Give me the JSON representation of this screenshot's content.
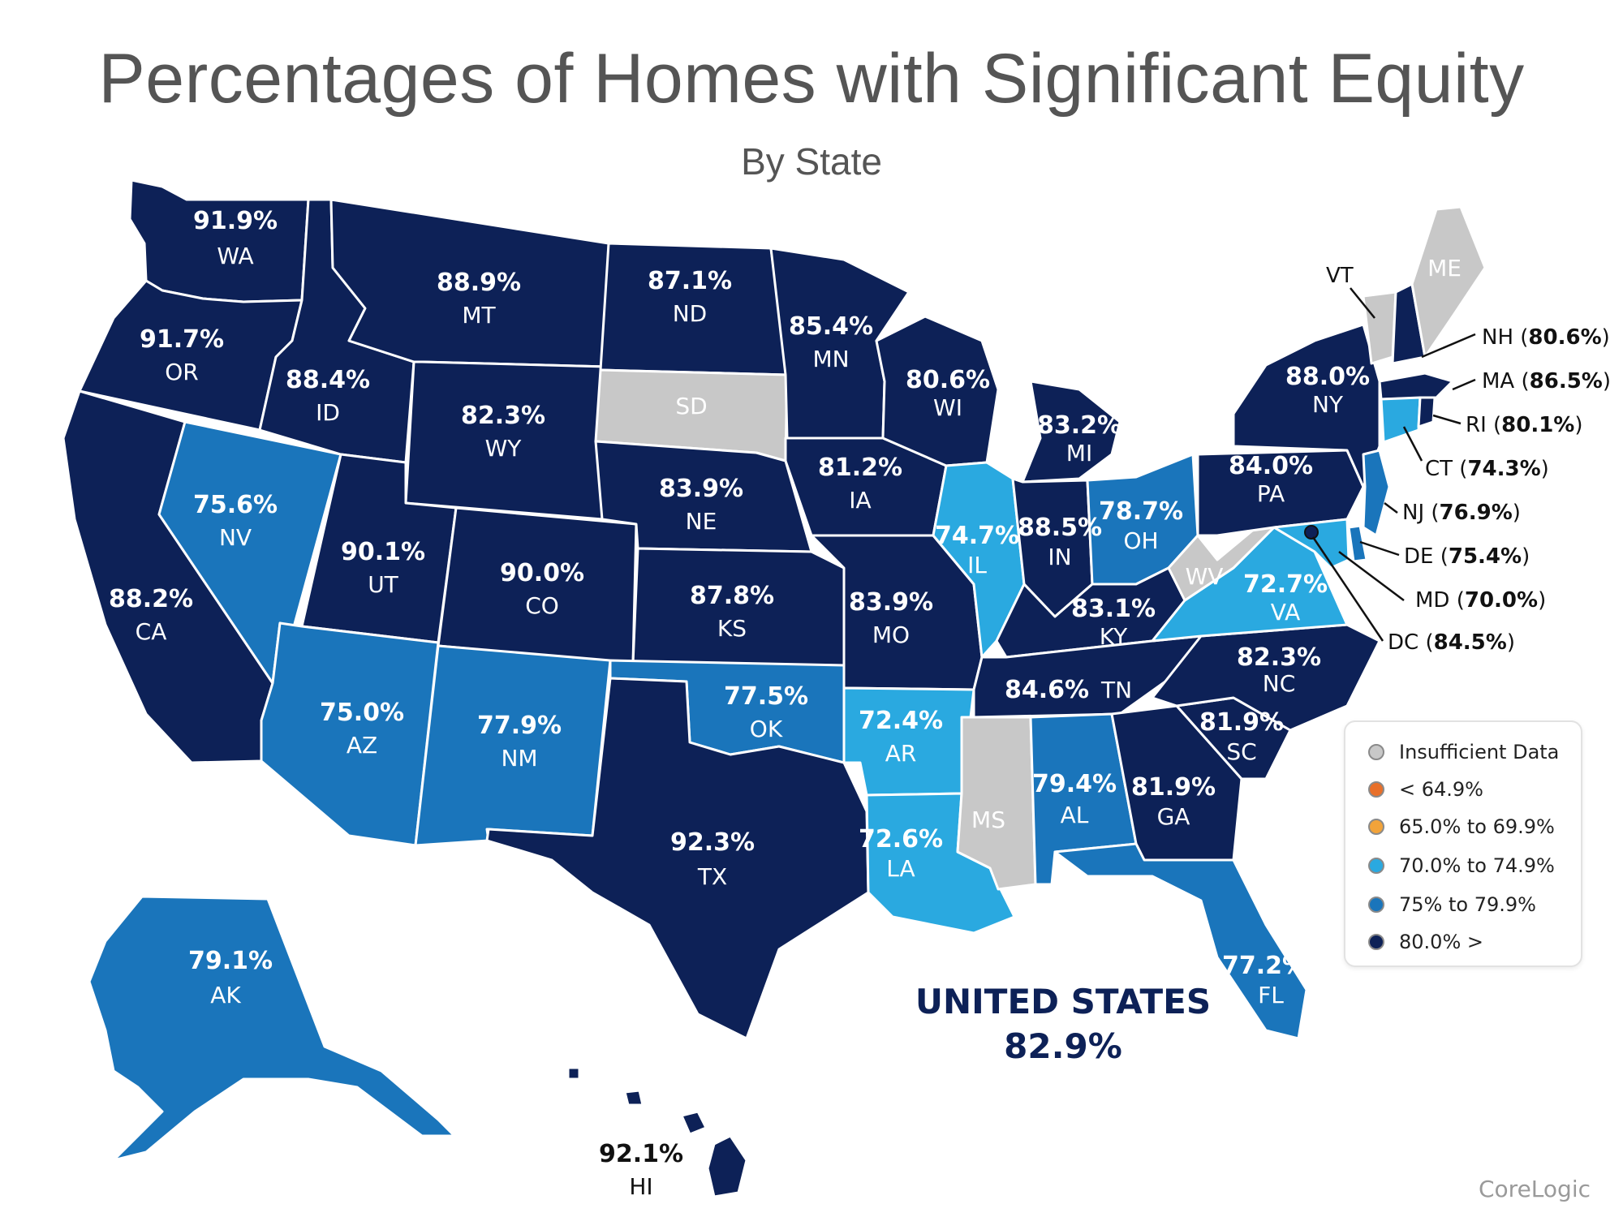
{
  "title": "Percentages of Homes with Significant Equity",
  "subtitle": "By State",
  "source": "CoreLogic",
  "national": {
    "name": "UNITED STATES",
    "value": "82.9%"
  },
  "colors": {
    "insufficient": "#c8c8c8",
    "lt65": "#e8702a",
    "65to70": "#f2a33a",
    "70to75": "#2aa9e0",
    "75to80": "#1a75bb",
    "gt80": "#0d2157"
  },
  "legend": [
    {
      "label": "Insufficient Data",
      "color": "#c8c8c8"
    },
    {
      "label": "< 64.9%",
      "color": "#e8702a"
    },
    {
      "label": "65.0% to 69.9%",
      "color": "#f2a33a"
    },
    {
      "label": "70.0% to 74.9%",
      "color": "#2aa9e0"
    },
    {
      "label": "75% to 79.9%",
      "color": "#1a75bb"
    },
    {
      "label": "80.0% >",
      "color": "#0d2157"
    }
  ],
  "states": {
    "WA": {
      "abbr": "WA",
      "pct": "91.9%"
    },
    "OR": {
      "abbr": "OR",
      "pct": "91.7%"
    },
    "CA": {
      "abbr": "CA",
      "pct": "88.2%"
    },
    "NV": {
      "abbr": "NV",
      "pct": "75.6%"
    },
    "ID": {
      "abbr": "ID",
      "pct": "88.4%"
    },
    "MT": {
      "abbr": "MT",
      "pct": "88.9%"
    },
    "WY": {
      "abbr": "WY",
      "pct": "82.3%"
    },
    "UT": {
      "abbr": "UT",
      "pct": "90.1%"
    },
    "CO": {
      "abbr": "CO",
      "pct": "90.0%"
    },
    "AZ": {
      "abbr": "AZ",
      "pct": "75.0%"
    },
    "NM": {
      "abbr": "NM",
      "pct": "77.9%"
    },
    "ND": {
      "abbr": "ND",
      "pct": "87.1%"
    },
    "SD": {
      "abbr": "SD",
      "pct": ""
    },
    "NE": {
      "abbr": "NE",
      "pct": "83.9%"
    },
    "KS": {
      "abbr": "KS",
      "pct": "87.8%"
    },
    "OK": {
      "abbr": "OK",
      "pct": "77.5%"
    },
    "TX": {
      "abbr": "TX",
      "pct": "92.3%"
    },
    "MN": {
      "abbr": "MN",
      "pct": "85.4%"
    },
    "IA": {
      "abbr": "IA",
      "pct": "81.2%"
    },
    "MO": {
      "abbr": "MO",
      "pct": "83.9%"
    },
    "AR": {
      "abbr": "AR",
      "pct": "72.4%"
    },
    "LA": {
      "abbr": "LA",
      "pct": "72.6%"
    },
    "WI": {
      "abbr": "WI",
      "pct": "80.6%"
    },
    "IL": {
      "abbr": "IL",
      "pct": "74.7%"
    },
    "MI": {
      "abbr": "MI",
      "pct": "83.2%"
    },
    "IN": {
      "abbr": "IN",
      "pct": "88.5%"
    },
    "OH": {
      "abbr": "OH",
      "pct": "78.7%"
    },
    "KY": {
      "abbr": "KY",
      "pct": "83.1%"
    },
    "TN": {
      "abbr": "TN",
      "pct": "84.6%"
    },
    "MS": {
      "abbr": "MS",
      "pct": ""
    },
    "AL": {
      "abbr": "AL",
      "pct": "79.4%"
    },
    "GA": {
      "abbr": "GA",
      "pct": "81.9%"
    },
    "FL": {
      "abbr": "FL",
      "pct": "77.2%"
    },
    "SC": {
      "abbr": "SC",
      "pct": "81.9%"
    },
    "NC": {
      "abbr": "NC",
      "pct": "82.3%"
    },
    "VA": {
      "abbr": "VA",
      "pct": "72.7%"
    },
    "WV": {
      "abbr": "WV",
      "pct": ""
    },
    "PA": {
      "abbr": "PA",
      "pct": "84.0%"
    },
    "NY": {
      "abbr": "NY",
      "pct": "88.0%"
    },
    "VT": {
      "abbr": "VT",
      "pct": ""
    },
    "ME": {
      "abbr": "ME",
      "pct": ""
    },
    "NH": {
      "abbr": "NH",
      "pct": "80.6%"
    },
    "MA": {
      "abbr": "MA",
      "pct": "86.5%"
    },
    "RI": {
      "abbr": "RI",
      "pct": "80.1%"
    },
    "CT": {
      "abbr": "CT",
      "pct": "74.3%"
    },
    "NJ": {
      "abbr": "NJ",
      "pct": "76.9%"
    },
    "DE": {
      "abbr": "DE",
      "pct": "75.4%"
    },
    "MD": {
      "abbr": "MD",
      "pct": "70.0%"
    },
    "DC": {
      "abbr": "DC",
      "pct": "84.5%"
    },
    "AK": {
      "abbr": "AK",
      "pct": "79.1%"
    },
    "HI": {
      "abbr": "HI",
      "pct": "92.1%"
    }
  }
}
